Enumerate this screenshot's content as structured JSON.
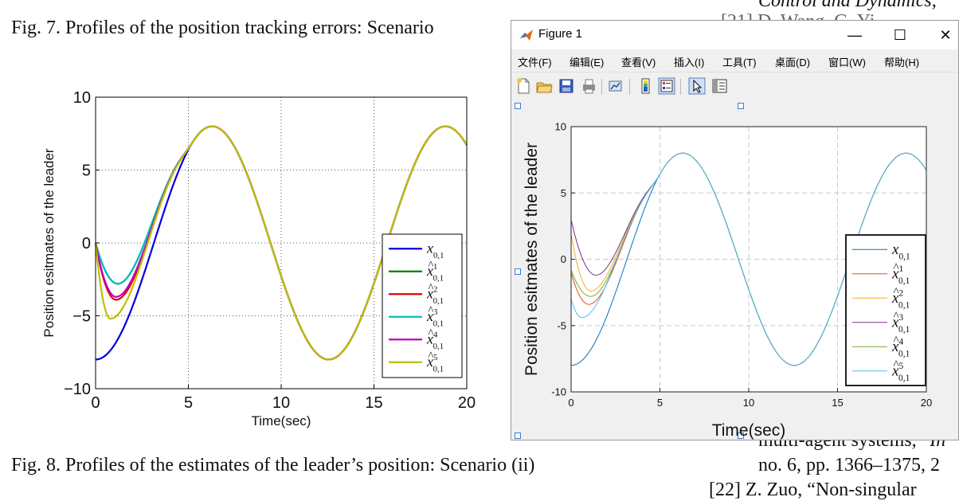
{
  "document": {
    "header_right": "Control and Dynamics,",
    "fig7_caption": "Fig. 7.   Profiles of the position tracking errors: Scenario",
    "fig8_caption": "Fig. 8.   Profiles of the estimates of the leader’s position: Scenario (ii)",
    "ref_line1": "multi-agent systems,”",
    "ref_line1_italic": "In",
    "ref_line2": "no. 6, pp. 1366–1375, 2",
    "ref_line3": "[22]  Z. Zuo, “Non-singular",
    "behind_window_text": "[21] D. Wang, G. Yi"
  },
  "window": {
    "title": "Figure 1",
    "buttons": {
      "minimize": "—",
      "maximize": "☐",
      "close": "✕"
    },
    "menus": [
      "文件(F)",
      "编辑(E)",
      "查看(V)",
      "插入(I)",
      "工具(T)",
      "桌面(D)",
      "窗口(W)",
      "帮助(H)"
    ],
    "toolbar_icons": [
      "new-file-icon",
      "open-folder-icon",
      "save-icon",
      "print-icon",
      "link-plot-icon",
      "colorbar-icon",
      "legend-icon",
      "select-arrow-icon",
      "property-editor-icon"
    ]
  },
  "colors": {
    "doc_series": [
      "#0000e0",
      "#007f00",
      "#e00000",
      "#00bfbf",
      "#bf00bf",
      "#bfbf00"
    ],
    "matlab_series": [
      "#0072BD",
      "#D95319",
      "#EDB120",
      "#7E2F8E",
      "#77AC30",
      "#4DBEEE"
    ]
  },
  "chart_data": [
    {
      "type": "line",
      "title": "",
      "xlabel": "Time(sec)",
      "ylabel": "Position esitmates of the leader",
      "xlim": [
        0,
        20
      ],
      "ylim": [
        -10,
        10
      ],
      "xticks": [
        "0",
        "5",
        "10",
        "15",
        "20"
      ],
      "yticks": [
        "−10",
        "−5",
        "0",
        "5",
        "10"
      ],
      "grid": true,
      "legend_position": "bottom-right",
      "leader": {
        "amplitude": 8,
        "period": 12.566,
        "phase_offset": 3.1416
      },
      "series": [
        {
          "name": "x_{0,1}",
          "initial": -8,
          "minimum": -8,
          "min_time": 0.0,
          "settle_time": 5.2
        },
        {
          "name": "x̂¹_{0,1}",
          "initial": 0,
          "minimum": -2.8,
          "min_time": 1.2,
          "settle_time": 5.2
        },
        {
          "name": "x̂²_{0,1}",
          "initial": 0,
          "minimum": -3.9,
          "min_time": 1.1,
          "settle_time": 5.2
        },
        {
          "name": "x̂³_{0,1}",
          "initial": 0,
          "minimum": -2.8,
          "min_time": 1.2,
          "settle_time": 5.2
        },
        {
          "name": "x̂⁴_{0,1}",
          "initial": 0,
          "minimum": -3.7,
          "min_time": 1.1,
          "settle_time": 5.2
        },
        {
          "name": "x̂⁵_{0,1}",
          "initial": 0,
          "minimum": -5.2,
          "min_time": 0.8,
          "settle_time": 5.2
        }
      ]
    },
    {
      "type": "line",
      "title": "",
      "xlabel": "Time(sec)",
      "ylabel": "Position esitmates of the leader",
      "xlim": [
        0,
        20
      ],
      "ylim": [
        -10,
        10
      ],
      "xticks": [
        "0",
        "5",
        "10",
        "15",
        "20"
      ],
      "yticks": [
        "-10",
        "-5",
        "0",
        "5",
        "10"
      ],
      "grid": true,
      "legend_position": "bottom-right",
      "leader": {
        "amplitude": 8,
        "period": 12.566,
        "phase_offset": 3.1416
      },
      "series": [
        {
          "name": "x_{0,1}",
          "initial": -8,
          "minimum": -8,
          "min_time": 0.0,
          "settle_time": 5.0
        },
        {
          "name": "x̂¹_{0,1}",
          "initial": -1,
          "minimum": -3.4,
          "min_time": 1.0,
          "settle_time": 5.0
        },
        {
          "name": "x̂²_{0,1}",
          "initial": 1.9,
          "minimum": -2.4,
          "min_time": 1.1,
          "settle_time": 5.0
        },
        {
          "name": "x̂³_{0,1}",
          "initial": 3.0,
          "minimum": -1.2,
          "min_time": 1.4,
          "settle_time": 5.0
        },
        {
          "name": "x̂⁴_{0,1}",
          "initial": -0.8,
          "minimum": -2.8,
          "min_time": 1.1,
          "settle_time": 5.0
        },
        {
          "name": "x̂⁵_{0,1}",
          "initial": -3.0,
          "minimum": -4.4,
          "min_time": 0.6,
          "settle_time": 5.0
        }
      ]
    }
  ]
}
